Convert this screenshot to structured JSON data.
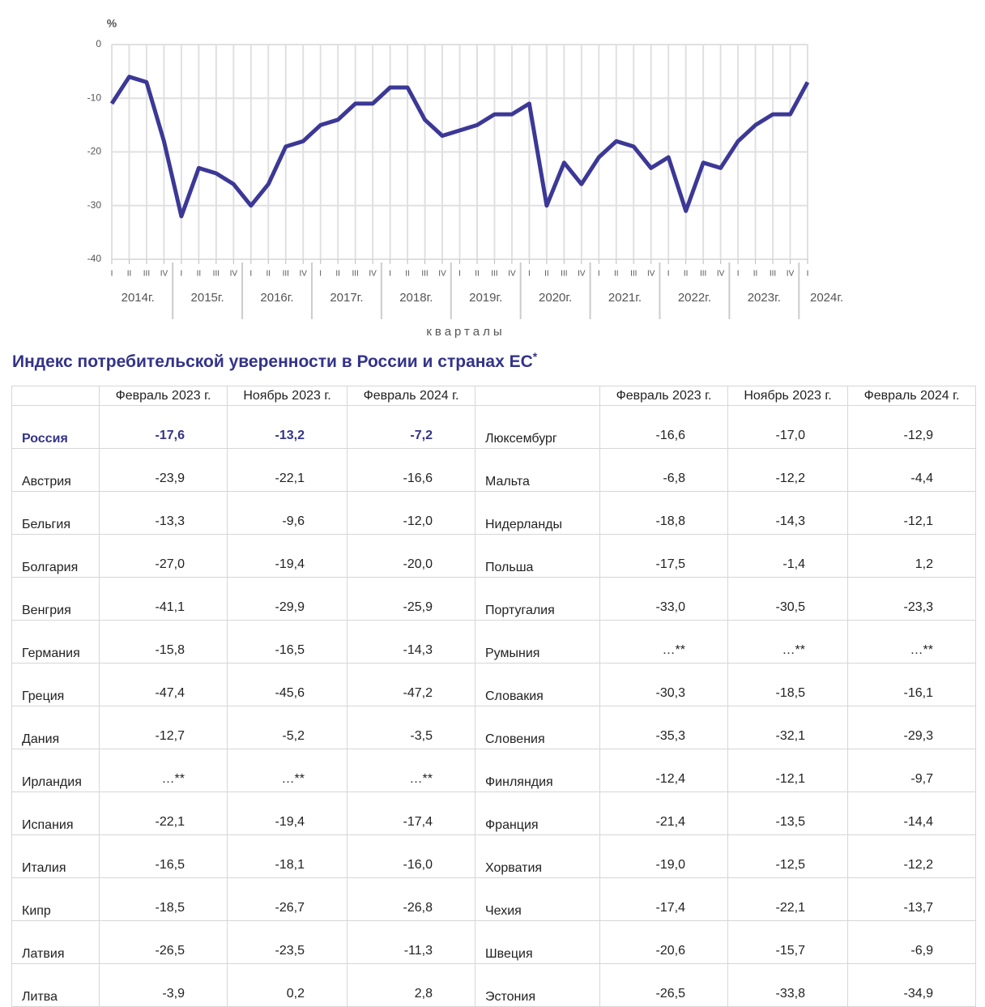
{
  "chart_data": {
    "type": "line",
    "y_unit": "%",
    "x_label": "кварталы",
    "categories": [
      "I",
      "II",
      "III",
      "IV",
      "I",
      "II",
      "III",
      "IV",
      "I",
      "II",
      "III",
      "IV",
      "I",
      "II",
      "III",
      "IV",
      "I",
      "II",
      "III",
      "IV",
      "I",
      "II",
      "III",
      "IV",
      "I",
      "II",
      "III",
      "IV",
      "I",
      "II",
      "III",
      "IV",
      "I",
      "II",
      "III",
      "IV",
      "I",
      "II",
      "III",
      "IV",
      "I"
    ],
    "x_groups": [
      "2014г.",
      "2015г.",
      "2016г.",
      "2017г.",
      "2018г.",
      "2019г.",
      "2020г.",
      "2021г.",
      "2022г.",
      "2023г.",
      "2024г."
    ],
    "series": [
      {
        "color": "#3c3896",
        "values": [
          -11,
          -6,
          -7,
          -18,
          -32,
          -23,
          -24,
          -26,
          -30,
          -26,
          -19,
          -18,
          -15,
          -14,
          -11,
          -11,
          -8,
          -8,
          -14,
          -17,
          -16,
          -15,
          -13,
          -13,
          -11,
          -30,
          -22,
          -26,
          -21,
          -18,
          -19,
          -23,
          -21,
          -31,
          -22,
          -23,
          -18,
          -15,
          -13,
          -13,
          -7
        ]
      }
    ],
    "ylim": [
      -40,
      0
    ],
    "yticks": [
      0,
      -10,
      -20,
      -30,
      -40
    ],
    "grid": true
  },
  "table": {
    "title": "Индекс потребительской уверенности в России и странах ЕС",
    "title_note": "*",
    "columns": [
      "Февраль 2023 г.",
      "Ноябрь 2023 г.",
      "Февраль 2024 г."
    ],
    "left": [
      [
        "Россия",
        "-17,6",
        "-13,2",
        "-7,2"
      ],
      [
        "Австрия",
        "-23,9",
        "-22,1",
        "-16,6"
      ],
      [
        "Бельгия",
        "-13,3",
        "-9,6",
        "-12,0"
      ],
      [
        "Болгария",
        "-27,0",
        "-19,4",
        "-20,0"
      ],
      [
        "Венгрия",
        "-41,1",
        "-29,9",
        "-25,9"
      ],
      [
        "Германия",
        "-15,8",
        "-16,5",
        "-14,3"
      ],
      [
        "Греция",
        "-47,4",
        "-45,6",
        "-47,2"
      ],
      [
        "Дания",
        "-12,7",
        "-5,2",
        "-3,5"
      ],
      [
        "Ирландия",
        "…**",
        "…**",
        "…**"
      ],
      [
        "Испания",
        "-22,1",
        "-19,4",
        "-17,4"
      ],
      [
        "Италия",
        "-16,5",
        "-18,1",
        "-16,0"
      ],
      [
        "Кипр",
        "-18,5",
        "-26,7",
        "-26,8"
      ],
      [
        "Латвия",
        "-26,5",
        "-23,5",
        "-11,3"
      ],
      [
        "Литва",
        "-3,9",
        "0,2",
        "2,8"
      ]
    ],
    "right": [
      [
        "Люксембург",
        "-16,6",
        "-17,0",
        "-12,9"
      ],
      [
        "Мальта",
        "-6,8",
        "-12,2",
        "-4,4"
      ],
      [
        "Нидерланды",
        "-18,8",
        "-14,3",
        "-12,1"
      ],
      [
        "Польша",
        "-17,5",
        "-1,4",
        "1,2"
      ],
      [
        "Португалия",
        "-33,0",
        "-30,5",
        "-23,3"
      ],
      [
        "Румыния",
        "…**",
        "…**",
        "…**"
      ],
      [
        "Словакия",
        "-30,3",
        "-18,5",
        "-16,1"
      ],
      [
        "Словения",
        "-35,3",
        "-32,1",
        "-29,3"
      ],
      [
        "Финляндия",
        "-12,4",
        "-12,1",
        "-9,7"
      ],
      [
        "Франция",
        "-21,4",
        "-13,5",
        "-14,4"
      ],
      [
        "Хорватия",
        "-19,0",
        "-12,5",
        "-12,2"
      ],
      [
        "Чехия",
        "-17,4",
        "-22,1",
        "-13,7"
      ],
      [
        "Швеция",
        "-20,6",
        "-15,7",
        "-6,9"
      ],
      [
        "Эстония",
        "-26,5",
        "-33,8",
        "-34,9"
      ]
    ]
  }
}
